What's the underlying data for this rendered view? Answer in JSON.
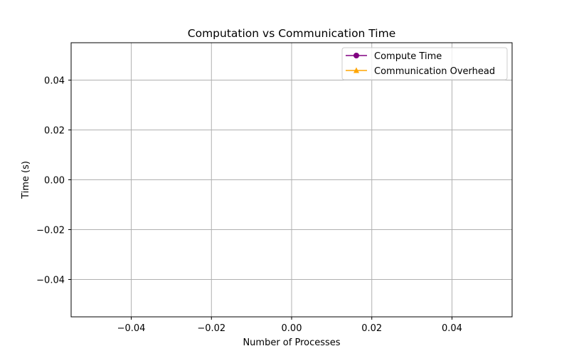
{
  "chart_data": {
    "type": "line",
    "title": "Computation vs Communication Time",
    "xlabel": "Number of Processes",
    "ylabel": "Time (s)",
    "xlim": [
      -0.055,
      0.055
    ],
    "ylim": [
      -0.055,
      0.055
    ],
    "xticks": [
      -0.04,
      -0.02,
      0.0,
      0.02,
      0.04
    ],
    "xtick_labels": [
      "−0.04",
      "−0.02",
      "0.00",
      "0.02",
      "0.04"
    ],
    "yticks": [
      -0.04,
      -0.02,
      0.0,
      0.02,
      0.04
    ],
    "ytick_labels": [
      "−0.04",
      "−0.02",
      "0.00",
      "0.02",
      "0.04"
    ],
    "grid": true,
    "legend_position": "top-right",
    "series": [
      {
        "name": "Compute Time",
        "color": "#800080",
        "marker": "circle",
        "x": [],
        "y": []
      },
      {
        "name": "Communication Overhead",
        "color": "#FFA500",
        "marker": "triangle",
        "x": [],
        "y": []
      }
    ]
  }
}
